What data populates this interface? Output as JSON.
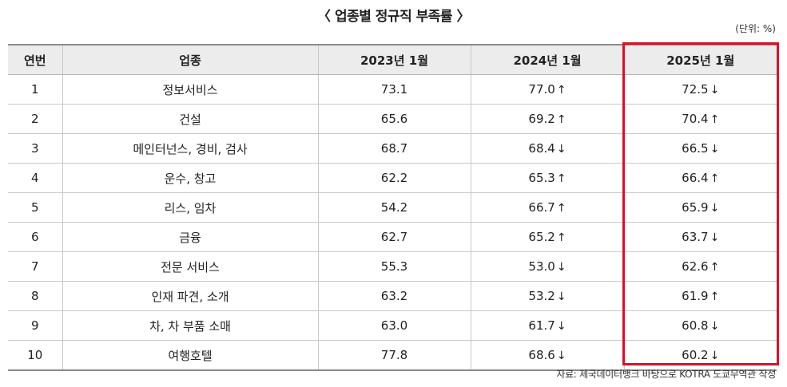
{
  "title": "〈 업종별 정규직 부족률 〉",
  "unit": "(단위: %)",
  "columns": [
    "연번",
    "업종",
    "2023년 1월",
    "2024년 1월",
    "2025년 1월"
  ],
  "rows": [
    {
      "no": "1",
      "industry": "정보서비스",
      "y2023": "73.1",
      "y2024": "77.0",
      "y2024_trend": "↑",
      "y2025": "72.5",
      "y2025_trend": "↓"
    },
    {
      "no": "2",
      "industry": "건설",
      "y2023": "65.6",
      "y2024": "69.2",
      "y2024_trend": "↑",
      "y2025": "70.4",
      "y2025_trend": "↑"
    },
    {
      "no": "3",
      "industry": "메인터넌스, 경비, 검사",
      "y2023": "68.7",
      "y2024": "68.4",
      "y2024_trend": "↓",
      "y2025": "66.5",
      "y2025_trend": "↓"
    },
    {
      "no": "4",
      "industry": "운수, 창고",
      "y2023": "62.2",
      "y2024": "65.3",
      "y2024_trend": "↑",
      "y2025": "66.4",
      "y2025_trend": "↑"
    },
    {
      "no": "5",
      "industry": "리스, 임차",
      "y2023": "54.2",
      "y2024": "66.7",
      "y2024_trend": "↑",
      "y2025": "65.9",
      "y2025_trend": "↓"
    },
    {
      "no": "6",
      "industry": "금융",
      "y2023": "62.7",
      "y2024": "65.2",
      "y2024_trend": "↑",
      "y2025": "63.7",
      "y2025_trend": "↓"
    },
    {
      "no": "7",
      "industry": "전문 서비스",
      "y2023": "55.3",
      "y2024": "53.0",
      "y2024_trend": "↓",
      "y2025": "62.6",
      "y2025_trend": "↑"
    },
    {
      "no": "8",
      "industry": "인재 파견, 소개",
      "y2023": "63.2",
      "y2024": "53.2",
      "y2024_trend": "↓",
      "y2025": "61.9",
      "y2025_trend": "↑"
    },
    {
      "no": "9",
      "industry": "차, 차 부품 소매",
      "y2023": "63.0",
      "y2024": "61.7",
      "y2024_trend": "↓",
      "y2025": "60.8",
      "y2025_trend": "↓"
    },
    {
      "no": "10",
      "industry": "여행호텔",
      "y2023": "77.8",
      "y2024": "68.6",
      "y2024_trend": "↓",
      "y2025": "60.2",
      "y2025_trend": "↓"
    }
  ],
  "source": "자료: 제국데이터뱅크 바탕으로 KOTRA 도쿄무역관 작성",
  "highlight_color": "#d0152b"
}
